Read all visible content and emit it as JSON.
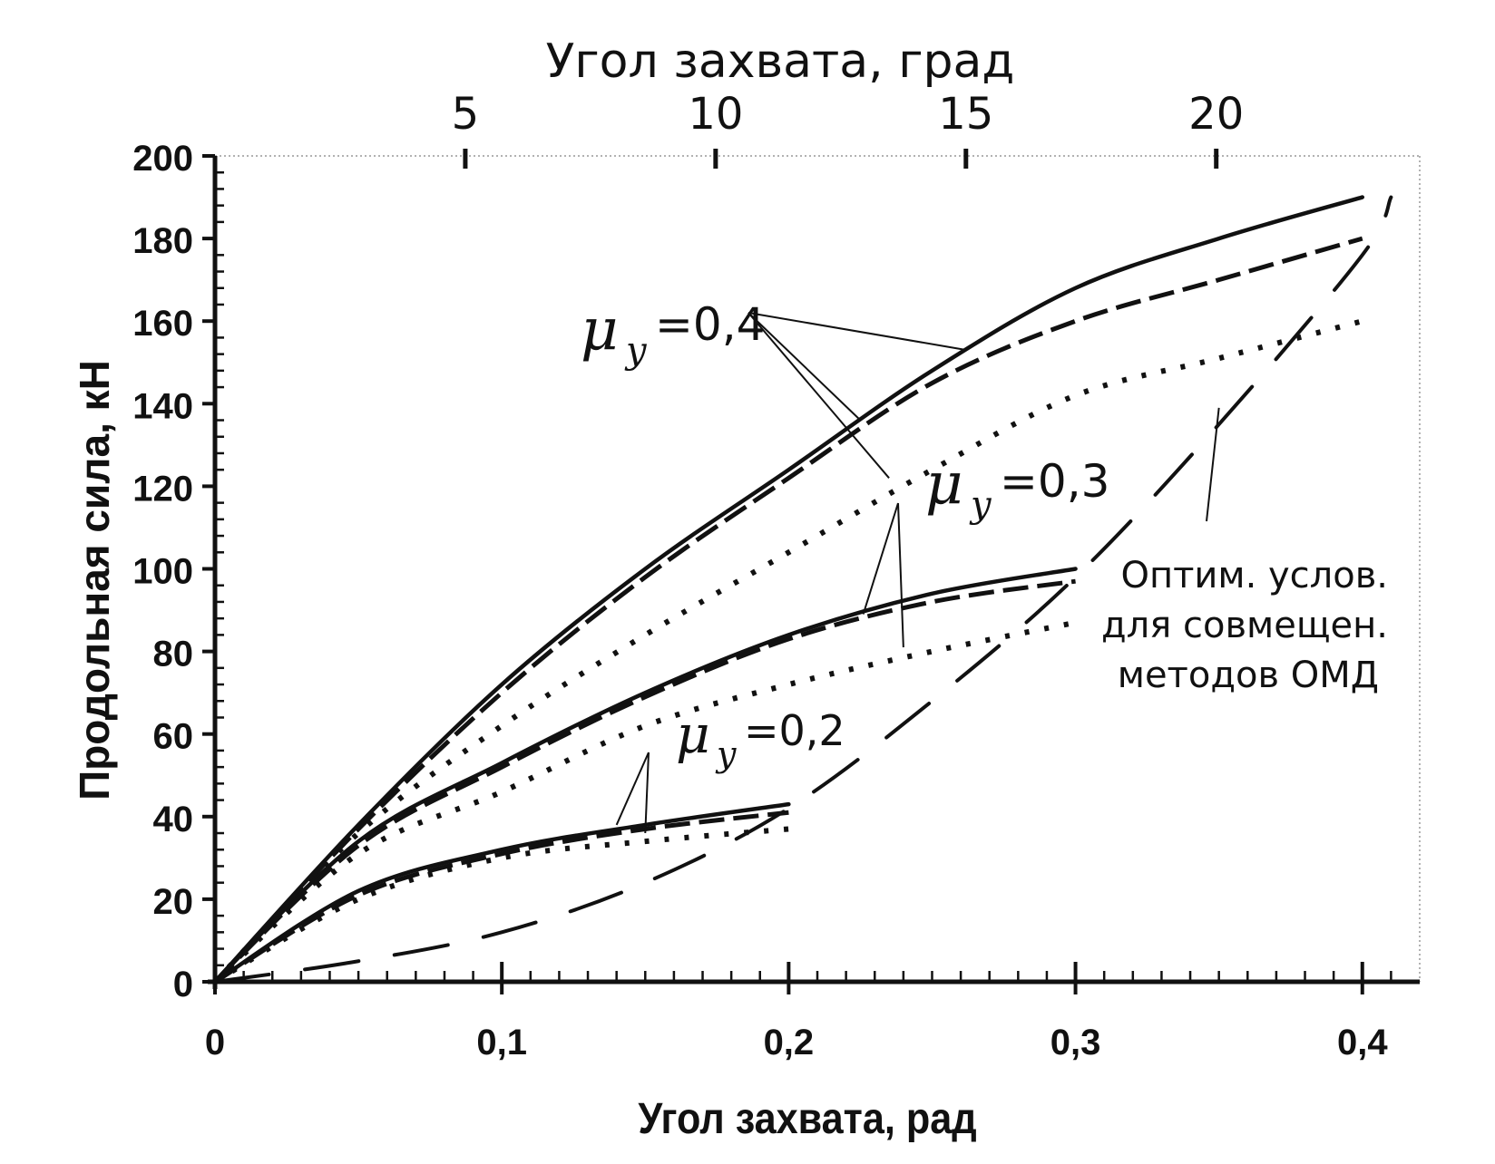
{
  "chart_data": {
    "type": "line",
    "xlabel": "Угол захвата, рад",
    "x2label": "Угол захвата, град",
    "ylabel": "Продольная сила, кН",
    "xlim": [
      0,
      0.42
    ],
    "ylim": [
      0,
      200
    ],
    "x_ticks": [
      0,
      0.1,
      0.2,
      0.3,
      0.4
    ],
    "x_tick_labels": [
      "0",
      "0,1",
      "0,2",
      "0,3",
      "0,4"
    ],
    "y_ticks": [
      0,
      20,
      40,
      60,
      80,
      100,
      120,
      140,
      160,
      180,
      200
    ],
    "y_tick_labels": [
      "0",
      "20",
      "40",
      "60",
      "80",
      "100",
      "120",
      "140",
      "160",
      "180",
      "200"
    ],
    "x2_ticks_deg": [
      5,
      10,
      15,
      20
    ],
    "x2_tick_labels": [
      "5",
      "10",
      "15",
      "20"
    ],
    "grid": false,
    "series": [
      {
        "style": "solid",
        "group": "mu04",
        "x": [
          0,
          0.05,
          0.1,
          0.15,
          0.2,
          0.25,
          0.3,
          0.35,
          0.4
        ],
        "y": [
          0,
          38,
          72,
          100,
          124,
          148,
          168,
          180,
          190
        ]
      },
      {
        "style": "dashed",
        "group": "mu04",
        "x": [
          0,
          0.05,
          0.1,
          0.15,
          0.2,
          0.25,
          0.3,
          0.35,
          0.4
        ],
        "y": [
          0,
          37,
          70,
          98,
          122,
          145,
          160,
          170,
          180
        ]
      },
      {
        "style": "dotted",
        "group": "mu04",
        "x": [
          0,
          0.05,
          0.1,
          0.15,
          0.2,
          0.25,
          0.3,
          0.35,
          0.4
        ],
        "y": [
          0,
          36,
          62,
          84,
          104,
          124,
          142,
          151,
          160
        ]
      },
      {
        "style": "solid",
        "group": "mu03",
        "x": [
          0,
          0.05,
          0.1,
          0.15,
          0.2,
          0.25,
          0.3
        ],
        "y": [
          0,
          34,
          53,
          70,
          84,
          94,
          100
        ]
      },
      {
        "style": "dashed",
        "group": "mu03",
        "x": [
          0,
          0.05,
          0.1,
          0.15,
          0.2,
          0.25,
          0.3
        ],
        "y": [
          0,
          33,
          52,
          69,
          83,
          92,
          97
        ]
      },
      {
        "style": "dotted",
        "group": "mu03",
        "x": [
          0,
          0.05,
          0.1,
          0.15,
          0.2,
          0.25,
          0.3
        ],
        "y": [
          0,
          31,
          46,
          62,
          72,
          80,
          87
        ]
      },
      {
        "style": "solid",
        "group": "mu02",
        "x": [
          0,
          0.05,
          0.1,
          0.15,
          0.2
        ],
        "y": [
          0,
          22,
          32,
          38,
          43
        ]
      },
      {
        "style": "dashed",
        "group": "mu02",
        "x": [
          0,
          0.05,
          0.1,
          0.15,
          0.2
        ],
        "y": [
          0,
          21,
          31,
          37,
          41
        ]
      },
      {
        "style": "dotted",
        "group": "mu02",
        "x": [
          0,
          0.05,
          0.1,
          0.15,
          0.2
        ],
        "y": [
          0,
          20,
          30,
          34,
          37
        ]
      },
      {
        "style": "longdash",
        "group": "optimal",
        "x": [
          0,
          0.05,
          0.1,
          0.15,
          0.2,
          0.25,
          0.3,
          0.35,
          0.4,
          0.41
        ],
        "y": [
          0,
          5,
          12,
          24,
          42,
          68,
          98,
          135,
          176,
          190
        ]
      }
    ],
    "annotations": [
      {
        "id": "mu04",
        "prefix": "μ",
        "sub": "y",
        "text": "=0,4"
      },
      {
        "id": "mu03",
        "prefix": "μ",
        "sub": "y",
        "text": "=0,3"
      },
      {
        "id": "mu02",
        "prefix": "μ",
        "sub": "y",
        "text": "=0,2"
      },
      {
        "id": "optimal",
        "lines": [
          "Оптим. услов.",
          "для совмещен.",
          "методов ОМД"
        ]
      }
    ]
  }
}
